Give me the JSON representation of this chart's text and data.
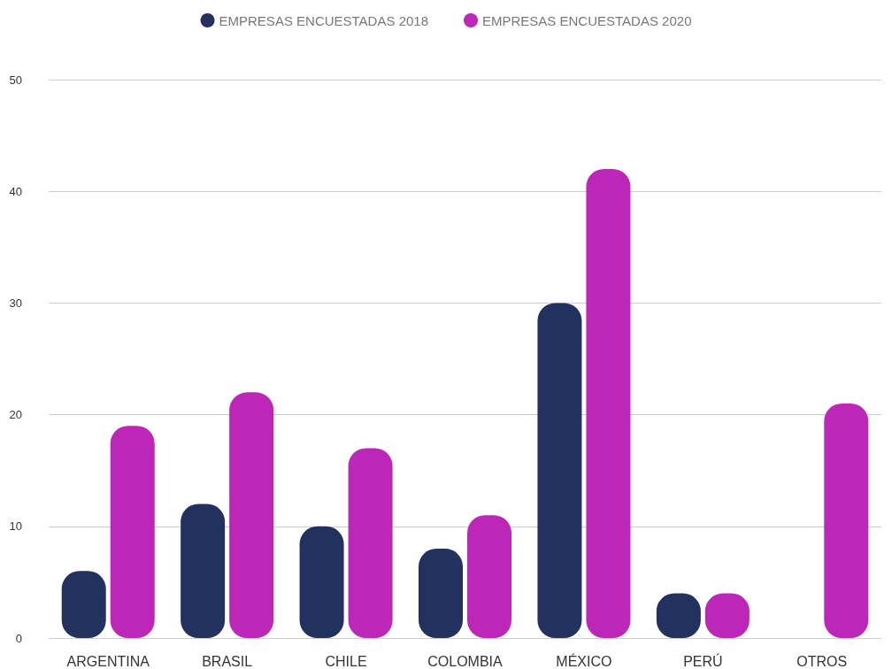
{
  "chart_data": {
    "type": "bar",
    "categories": [
      "ARGENTINA",
      "BRASIL",
      "CHILE",
      "COLOMBIA",
      "MÉXICO",
      "PERÚ",
      "OTROS"
    ],
    "series": [
      {
        "name": "EMPRESAS ENCUESTADAS 2018",
        "color": "#22315e",
        "values": [
          6,
          12,
          10,
          8,
          30,
          4,
          null
        ]
      },
      {
        "name": "EMPRESAS ENCUESTADAS 2020",
        "color": "#bc27b8",
        "values": [
          19,
          22,
          17,
          11,
          42,
          4,
          21
        ]
      }
    ],
    "ylim": [
      0,
      50
    ],
    "yticks": [
      0,
      10,
      20,
      30,
      40,
      50
    ],
    "grid": "y",
    "legend": "top"
  }
}
